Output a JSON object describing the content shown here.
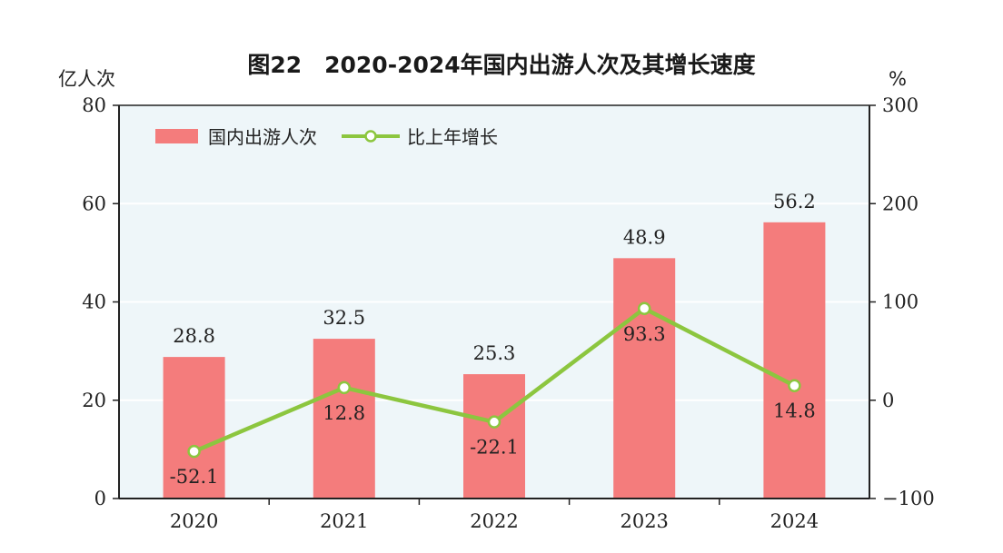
{
  "chart_data": {
    "type": "bar",
    "title": "图22　2020-2024年国内出游人次及其增长速度",
    "categories": [
      "2020",
      "2021",
      "2022",
      "2023",
      "2024"
    ],
    "series": [
      {
        "name": "国内出游人次",
        "kind": "bar",
        "axis": "left",
        "values": [
          28.8,
          32.5,
          25.3,
          48.9,
          56.2
        ],
        "labels": [
          "28.8",
          "32.5",
          "25.3",
          "48.9",
          "56.2"
        ],
        "color": "#f47c7c"
      },
      {
        "name": "比上年增长",
        "kind": "line",
        "axis": "right",
        "values": [
          -52.1,
          12.8,
          -22.1,
          93.3,
          14.8
        ],
        "labels": [
          "-52.1",
          "12.8",
          "-22.1",
          "93.3",
          "14.8"
        ],
        "color": "#8cc63f"
      }
    ],
    "ylabel_left": "亿人次",
    "ylabel_right": "%",
    "ylim_left": [
      0,
      80
    ],
    "ylim_right": [
      -100,
      300
    ],
    "yticks_left": [
      "0",
      "20",
      "40",
      "60",
      "80"
    ],
    "yticks_right": [
      "−100",
      "0",
      "100",
      "200",
      "300"
    ],
    "legend_position": "top-left",
    "grid": true
  },
  "colors": {
    "plot_background": "#eef6f9",
    "bar": "#f47c7c",
    "line": "#8cc63f",
    "grid": "#ffffff",
    "axis": "#222222"
  }
}
